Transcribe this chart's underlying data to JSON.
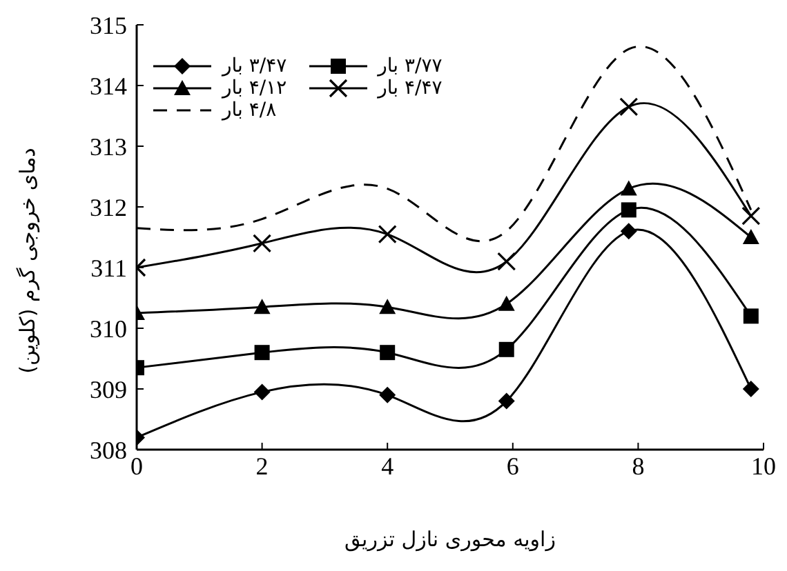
{
  "chart_data": {
    "type": "line",
    "xlabel": "زاویه محوری نازل تزریق",
    "ylabel": "دمای خروجی گرم (کلوین)",
    "xlim": [
      0,
      10
    ],
    "xticks": [
      0,
      2,
      4,
      6,
      8,
      10
    ],
    "ylim": [
      308,
      315
    ],
    "yticks": [
      308,
      309,
      310,
      311,
      312,
      313,
      314,
      315
    ],
    "grid": false,
    "legend": "top left",
    "series": [
      {
        "name": "۳/۴۷ بار",
        "color": "#000000",
        "marker": "diamond",
        "line_style": "solid",
        "x": [
          0,
          2,
          4,
          5.9,
          7.85,
          9.8
        ],
        "values": [
          308.2,
          308.95,
          308.9,
          308.8,
          311.6,
          309.0
        ]
      },
      {
        "name": "۳/۷۷ بار",
        "color": "#000000",
        "marker": "square",
        "line_style": "solid",
        "x": [
          0,
          2,
          4,
          5.9,
          7.85,
          9.8
        ],
        "values": [
          309.35,
          309.6,
          309.6,
          309.65,
          311.95,
          310.2
        ]
      },
      {
        "name": "۴/۱۲ بار",
        "color": "#000000",
        "marker": "triangle",
        "line_style": "solid",
        "x": [
          0,
          2,
          4,
          5.9,
          7.85,
          9.8
        ],
        "values": [
          310.25,
          310.35,
          310.35,
          310.4,
          312.3,
          311.5
        ]
      },
      {
        "name": "۴/۴۷ بار",
        "color": "#000000",
        "marker": "cross",
        "line_style": "solid",
        "x": [
          0,
          2,
          4,
          5.9,
          7.85,
          9.8
        ],
        "values": [
          311.0,
          311.4,
          311.55,
          311.1,
          313.65,
          311.85
        ]
      },
      {
        "name": "۴/۸ بار",
        "color": "#000000",
        "marker": "none",
        "line_style": "dashed",
        "x": [
          0,
          2,
          4,
          5.9,
          7.85,
          9.8
        ],
        "values": [
          311.65,
          311.8,
          312.3,
          311.6,
          314.6,
          311.95
        ]
      }
    ]
  }
}
